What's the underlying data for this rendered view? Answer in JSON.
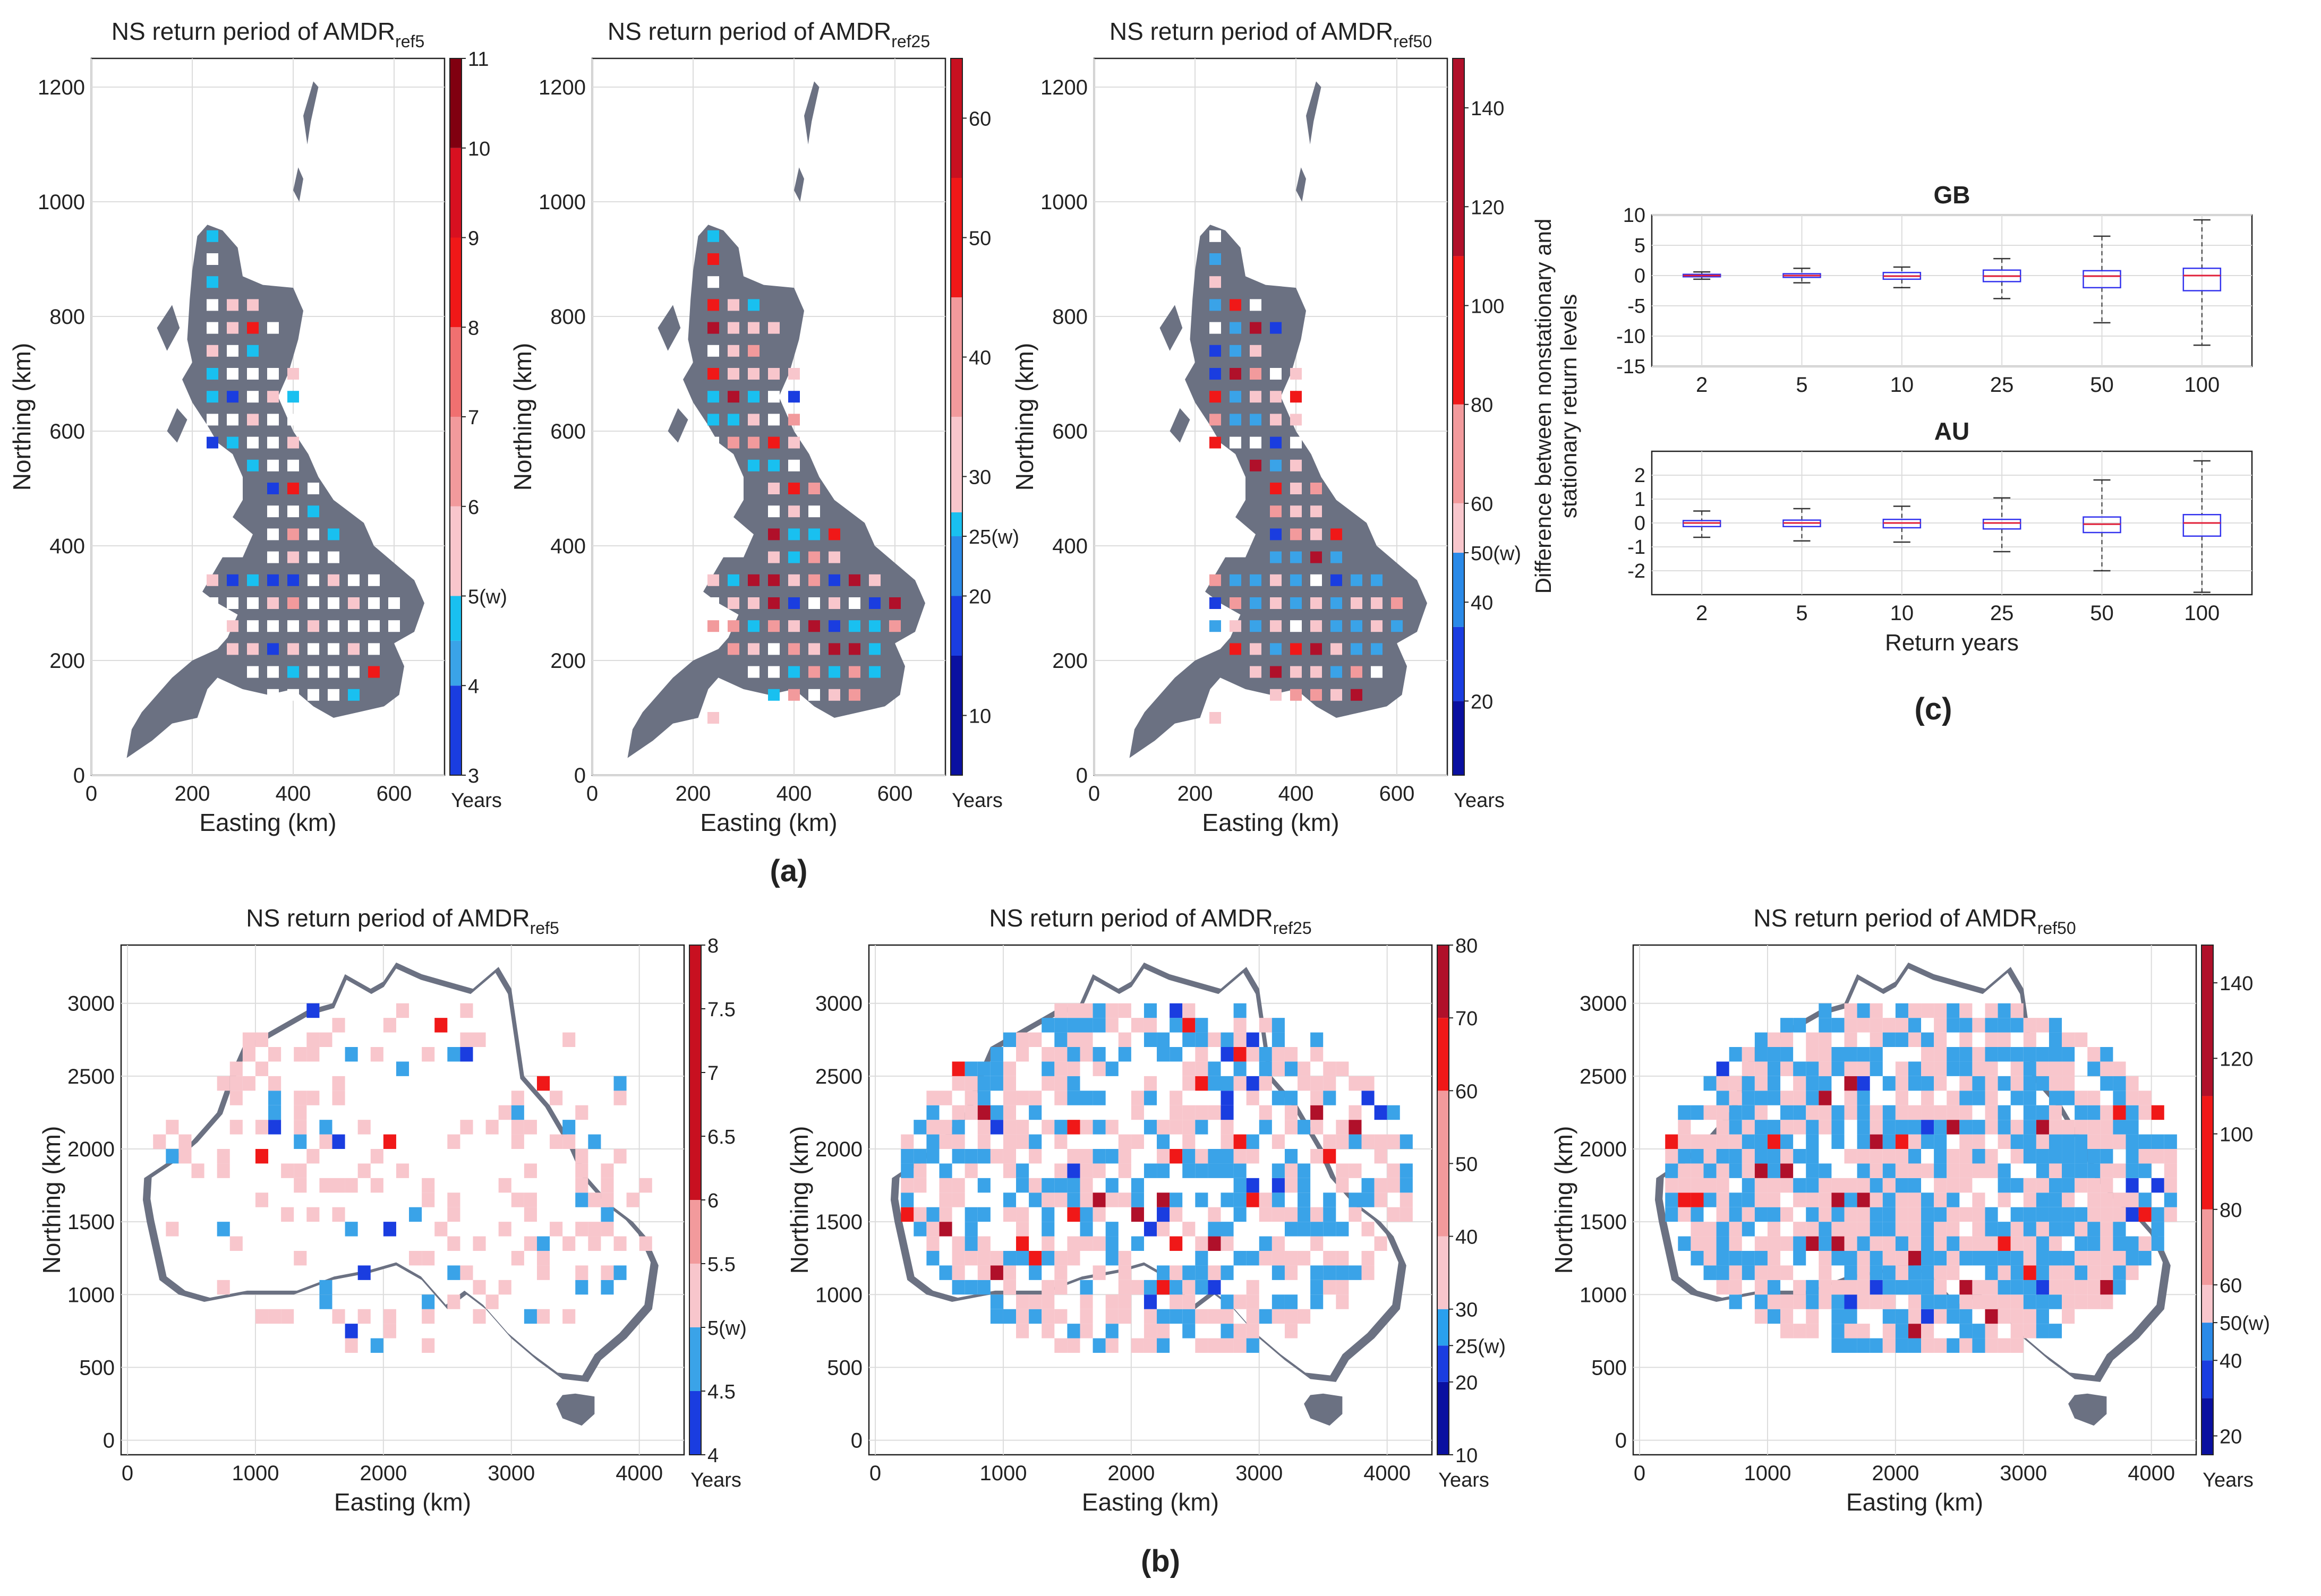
{
  "colors": {
    "land": "#6b7182",
    "grid": "#dcdcdc",
    "axis": "#222222",
    "box": "#3333ee",
    "median": "#e0203a",
    "whisker": "#333333",
    "cells": {
      "white": "#ffffff",
      "pink": "#f8c6cc",
      "salmon": "#f29a9c",
      "red": "#f01818",
      "darkred": "#b0102a",
      "cyan": "#19c0f0",
      "sky": "#3aa3e8",
      "blue": "#1a3de0",
      "navy": "#0a10a0"
    }
  },
  "panel_labels": {
    "a": "(a)",
    "b": "(b)",
    "c": "(c)"
  },
  "chart_data": [
    {
      "id": "gb-ref5",
      "type": "heatmap",
      "title_main": "NS return period of AMDR",
      "title_sub": "ref5",
      "xlabel": "Easting (km)",
      "ylabel": "Northing (km)",
      "xlim": [
        0,
        700
      ],
      "ylim": [
        0,
        1250
      ],
      "xticks": [
        0,
        200,
        400,
        600
      ],
      "yticks": [
        0,
        200,
        400,
        600,
        800,
        1000,
        1200
      ],
      "colorbar": {
        "range": [
          3,
          11
        ],
        "ticks": [
          "3",
          "4",
          "5(w)",
          "6",
          "7",
          "8",
          "9",
          "10",
          "11"
        ],
        "units": "Years",
        "segments": [
          {
            "from": 3,
            "to": 4,
            "color": "#1a3de0"
          },
          {
            "from": 4,
            "to": 4.5,
            "color": "#3aa3e8"
          },
          {
            "from": 4.5,
            "to": 5,
            "color": "#19c0f0"
          },
          {
            "from": 5,
            "to": 6,
            "color": "#f8c6cc"
          },
          {
            "from": 6,
            "to": 7,
            "color": "#f29a9c"
          },
          {
            "from": 7,
            "to": 8,
            "color": "#f07070"
          },
          {
            "from": 8,
            "to": 9,
            "color": "#f01818"
          },
          {
            "from": 9,
            "to": 10,
            "color": "#d81020"
          },
          {
            "from": 10,
            "to": 11,
            "color": "#800010"
          }
        ]
      }
    },
    {
      "id": "gb-ref25",
      "type": "heatmap",
      "title_main": "NS return period of AMDR",
      "title_sub": "ref25",
      "xlabel": "Easting (km)",
      "ylabel": "Northing (km)",
      "xlim": [
        0,
        700
      ],
      "ylim": [
        0,
        1250
      ],
      "xticks": [
        0,
        200,
        400,
        600
      ],
      "yticks": [
        0,
        200,
        400,
        600,
        800,
        1000,
        1200
      ],
      "colorbar": {
        "range": [
          5,
          65
        ],
        "ticks": [
          "10",
          "20",
          "25(w)",
          "30",
          "40",
          "50",
          "60"
        ],
        "tick_values": [
          10,
          20,
          25,
          30,
          40,
          50,
          60
        ],
        "units": "Years",
        "segments": [
          {
            "from": 5,
            "to": 15,
            "color": "#0a10a0"
          },
          {
            "from": 15,
            "to": 20,
            "color": "#1a3de0"
          },
          {
            "from": 20,
            "to": 25,
            "color": "#2a8ae8"
          },
          {
            "from": 25,
            "to": 27,
            "color": "#19c0f0"
          },
          {
            "from": 27,
            "to": 35,
            "color": "#f8c6cc"
          },
          {
            "from": 35,
            "to": 45,
            "color": "#f29a9c"
          },
          {
            "from": 45,
            "to": 55,
            "color": "#f01818"
          },
          {
            "from": 55,
            "to": 65,
            "color": "#c81020"
          }
        ]
      }
    },
    {
      "id": "gb-ref50",
      "type": "heatmap",
      "title_main": "NS return period of AMDR",
      "title_sub": "ref50",
      "xlabel": "Easting (km)",
      "ylabel": "Northing (km)",
      "xlim": [
        0,
        700
      ],
      "ylim": [
        0,
        1250
      ],
      "xticks": [
        0,
        200,
        400,
        600
      ],
      "yticks": [
        0,
        200,
        400,
        600,
        800,
        1000,
        1200
      ],
      "colorbar": {
        "range": [
          5,
          150
        ],
        "ticks": [
          "20",
          "40",
          "50(w)",
          "60",
          "80",
          "100",
          "120",
          "140"
        ],
        "tick_values": [
          20,
          40,
          50,
          60,
          80,
          100,
          120,
          140
        ],
        "units": "Years",
        "segments": [
          {
            "from": 5,
            "to": 20,
            "color": "#0a10a0"
          },
          {
            "from": 20,
            "to": 35,
            "color": "#1a3de0"
          },
          {
            "from": 35,
            "to": 50,
            "color": "#2a8ae8"
          },
          {
            "from": 50,
            "to": 60,
            "color": "#f8c6cc"
          },
          {
            "from": 60,
            "to": 80,
            "color": "#f29a9c"
          },
          {
            "from": 80,
            "to": 110,
            "color": "#f01818"
          },
          {
            "from": 110,
            "to": 150,
            "color": "#b0102a"
          }
        ]
      }
    },
    {
      "id": "au-ref5",
      "type": "heatmap",
      "title_main": "NS return period of AMDR",
      "title_sub": "ref5",
      "xlabel": "Easting (km)",
      "ylabel": "Northing (km)",
      "xlim": [
        -50,
        4350
      ],
      "ylim": [
        -100,
        3400
      ],
      "xticks": [
        0,
        1000,
        2000,
        3000,
        4000
      ],
      "yticks": [
        0,
        500,
        1000,
        1500,
        2000,
        2500,
        3000
      ],
      "colorbar": {
        "range": [
          4,
          8
        ],
        "ticks": [
          "4",
          "4.5",
          "5(w)",
          "5.5",
          "6",
          "6.5",
          "7",
          "7.5",
          "8"
        ],
        "tick_values": [
          4,
          4.5,
          5,
          5.5,
          6,
          6.5,
          7,
          7.5,
          8
        ],
        "units": "Years",
        "segments": [
          {
            "from": 4,
            "to": 4.5,
            "color": "#1a3de0"
          },
          {
            "from": 4.5,
            "to": 5,
            "color": "#3aa3e8"
          },
          {
            "from": 5,
            "to": 5.5,
            "color": "#f8c6cc"
          },
          {
            "from": 5.5,
            "to": 6,
            "color": "#f29a9c"
          },
          {
            "from": 6,
            "to": 8,
            "color": "#c81020"
          }
        ]
      }
    },
    {
      "id": "au-ref25",
      "type": "heatmap",
      "title_main": "NS return period of AMDR",
      "title_sub": "ref25",
      "xlabel": "Easting (km)",
      "ylabel": "Northing (km)",
      "xlim": [
        -50,
        4350
      ],
      "ylim": [
        -100,
        3400
      ],
      "xticks": [
        0,
        1000,
        2000,
        3000,
        4000
      ],
      "yticks": [
        0,
        500,
        1000,
        1500,
        2000,
        2500,
        3000
      ],
      "colorbar": {
        "range": [
          10,
          80
        ],
        "ticks": [
          "10",
          "20",
          "25(w)",
          "30",
          "40",
          "50",
          "60",
          "70",
          "80"
        ],
        "tick_values": [
          10,
          20,
          25,
          30,
          40,
          50,
          60,
          70,
          80
        ],
        "units": "Years",
        "segments": [
          {
            "from": 10,
            "to": 20,
            "color": "#0a10a0"
          },
          {
            "from": 20,
            "to": 25,
            "color": "#1a3de0"
          },
          {
            "from": 25,
            "to": 30,
            "color": "#2aa0ee"
          },
          {
            "from": 30,
            "to": 40,
            "color": "#f8c6cc"
          },
          {
            "from": 40,
            "to": 60,
            "color": "#f29a9c"
          },
          {
            "from": 60,
            "to": 70,
            "color": "#f01818"
          },
          {
            "from": 70,
            "to": 80,
            "color": "#b0102a"
          }
        ]
      }
    },
    {
      "id": "au-ref50",
      "type": "heatmap",
      "title_main": "NS return period of AMDR",
      "title_sub": "ref50",
      "xlabel": "Easting (km)",
      "ylabel": "Northing (km)",
      "xlim": [
        -50,
        4350
      ],
      "ylim": [
        -100,
        3400
      ],
      "xticks": [
        0,
        1000,
        2000,
        3000,
        4000
      ],
      "yticks": [
        0,
        500,
        1000,
        1500,
        2000,
        2500,
        3000
      ],
      "colorbar": {
        "range": [
          15,
          150
        ],
        "ticks": [
          "20",
          "40",
          "50(w)",
          "60",
          "80",
          "100",
          "120",
          "140"
        ],
        "tick_values": [
          20,
          40,
          50,
          60,
          80,
          100,
          120,
          140
        ],
        "units": "Years",
        "segments": [
          {
            "from": 15,
            "to": 30,
            "color": "#0a10a0"
          },
          {
            "from": 30,
            "to": 40,
            "color": "#1a3de0"
          },
          {
            "from": 40,
            "to": 50,
            "color": "#2a8ae8"
          },
          {
            "from": 50,
            "to": 60,
            "color": "#f8c6cc"
          },
          {
            "from": 60,
            "to": 80,
            "color": "#f29a9c"
          },
          {
            "from": 80,
            "to": 110,
            "color": "#f01818"
          },
          {
            "from": 110,
            "to": 150,
            "color": "#b0102a"
          }
        ]
      }
    },
    {
      "id": "box-gb",
      "type": "box",
      "title": "GB",
      "ylabel": "Difference between nonstationary and stationary return levels",
      "categories": [
        "2",
        "5",
        "10",
        "25",
        "50",
        "100"
      ],
      "ylim": [
        -15,
        10
      ],
      "yticks": [
        -15,
        -10,
        -5,
        0,
        5,
        10
      ],
      "boxes": [
        {
          "min": -0.6,
          "q1": -0.2,
          "median": 0,
          "q3": 0.2,
          "max": 0.6
        },
        {
          "min": -1.2,
          "q1": -0.3,
          "median": 0,
          "q3": 0.3,
          "max": 1.2
        },
        {
          "min": -2,
          "q1": -0.6,
          "median": -0.1,
          "q3": 0.5,
          "max": 1.4
        },
        {
          "min": -3.8,
          "q1": -1,
          "median": -0.1,
          "q3": 0.9,
          "max": 2.8
        },
        {
          "min": -7.8,
          "q1": -2,
          "median": -0.1,
          "q3": 0.8,
          "max": 6.5
        },
        {
          "min": -11.5,
          "q1": -2.5,
          "median": 0,
          "q3": 1.2,
          "max": 9.2
        }
      ]
    },
    {
      "id": "box-au",
      "type": "box",
      "title": "AU",
      "xlabel": "Return years",
      "categories": [
        "2",
        "5",
        "10",
        "25",
        "50",
        "100"
      ],
      "ylim": [
        -3,
        3
      ],
      "yticks": [
        -2,
        -1,
        0,
        1,
        2
      ],
      "boxes": [
        {
          "min": -0.6,
          "q1": -0.15,
          "median": 0,
          "q3": 0.1,
          "max": 0.5
        },
        {
          "min": -0.75,
          "q1": -0.15,
          "median": 0,
          "q3": 0.12,
          "max": 0.6
        },
        {
          "min": -0.8,
          "q1": -0.2,
          "median": 0,
          "q3": 0.15,
          "max": 0.7
        },
        {
          "min": -1.2,
          "q1": -0.25,
          "median": 0,
          "q3": 0.15,
          "max": 1.05
        },
        {
          "min": -2,
          "q1": -0.4,
          "median": -0.05,
          "q3": 0.25,
          "max": 1.8
        },
        {
          "min": -2.9,
          "q1": -0.55,
          "median": 0,
          "q3": 0.35,
          "max": 2.6
        }
      ]
    }
  ]
}
